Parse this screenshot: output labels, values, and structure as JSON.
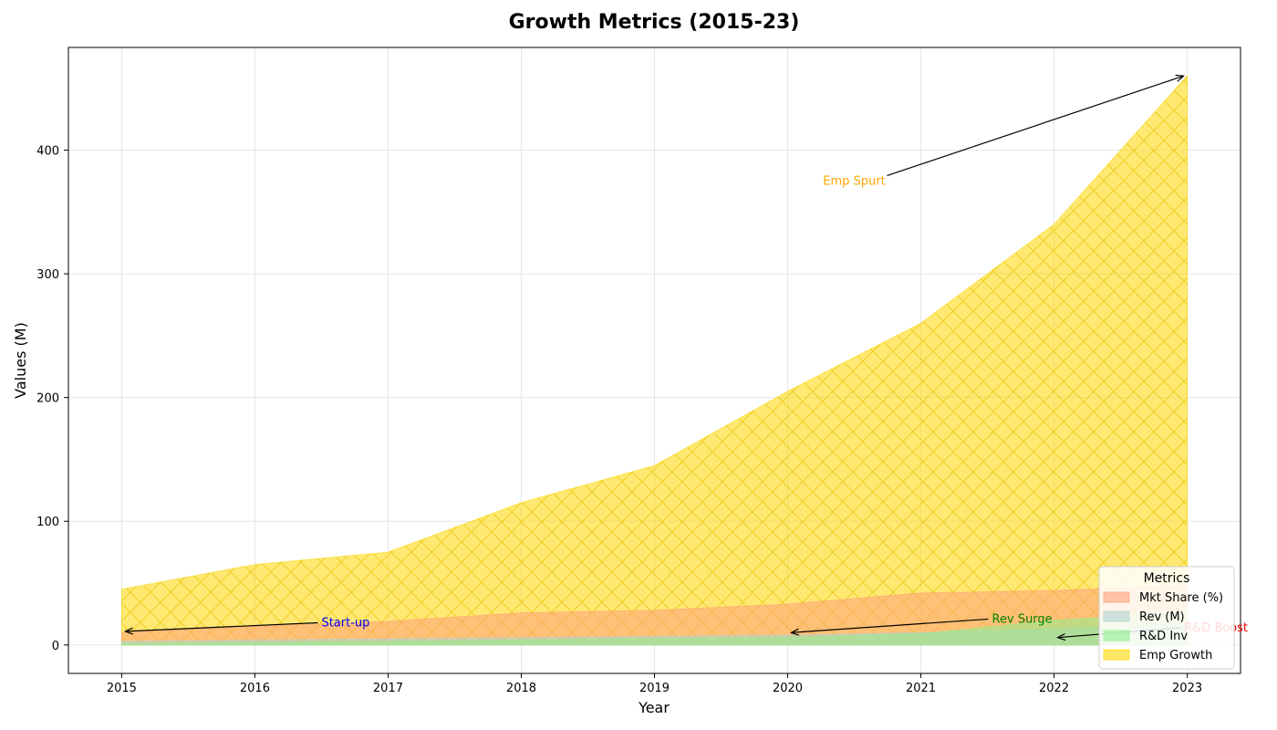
{
  "chart_data": {
    "type": "area",
    "title": "Growth Metrics (2015-23)",
    "xlabel": "Year",
    "ylabel": "Values (M)",
    "x": [
      2015,
      2016,
      2017,
      2018,
      2019,
      2020,
      2021,
      2022,
      2023
    ],
    "xlim": [
      2014.6,
      2023.4
    ],
    "ylim": [
      -23,
      483
    ],
    "yticks": [
      0,
      100,
      200,
      300,
      400
    ],
    "grid": true,
    "legend": {
      "title": "Metrics",
      "placement": "lower-right"
    },
    "series": [
      {
        "name": "Mkt Share (%)",
        "color": "#ffa07a",
        "hatch": "none",
        "values": [
          10,
          15,
          19,
          26,
          28,
          33,
          42,
          44,
          48
        ]
      },
      {
        "name": "Rev (M)",
        "color": "#b0d4d0",
        "hatch": "none",
        "values": [
          3,
          4,
          5,
          6,
          7,
          8,
          10,
          13,
          16
        ]
      },
      {
        "name": "R&D Inv",
        "color": "#90ee90",
        "hatch": "none",
        "values": [
          1,
          2,
          3,
          4,
          5,
          6,
          9,
          20,
          26
        ]
      },
      {
        "name": "Emp Growth",
        "color": "#ffd700",
        "hatch": "cross",
        "values": [
          45,
          65,
          75,
          115,
          145,
          205,
          260,
          340,
          460
        ]
      }
    ],
    "annotations": [
      {
        "text": "Start-up",
        "color": "#0000ff",
        "x": 2015,
        "y": 11,
        "text_x": 2016.5,
        "text_y": 15
      },
      {
        "text": "Emp Spurt",
        "color": "#ffa500",
        "x": 2023,
        "y": 460,
        "text_x": 2020.5,
        "text_y": 372
      },
      {
        "text": "Rev Surge",
        "color": "#008000",
        "x": 2020,
        "y": 10,
        "text_x": 2021.5,
        "text_y": 18
      },
      {
        "text": "R&D Boost",
        "color": "#ff0000",
        "x": 2022,
        "y": 6,
        "text_x": 2023.4,
        "text_y": 11
      }
    ]
  }
}
